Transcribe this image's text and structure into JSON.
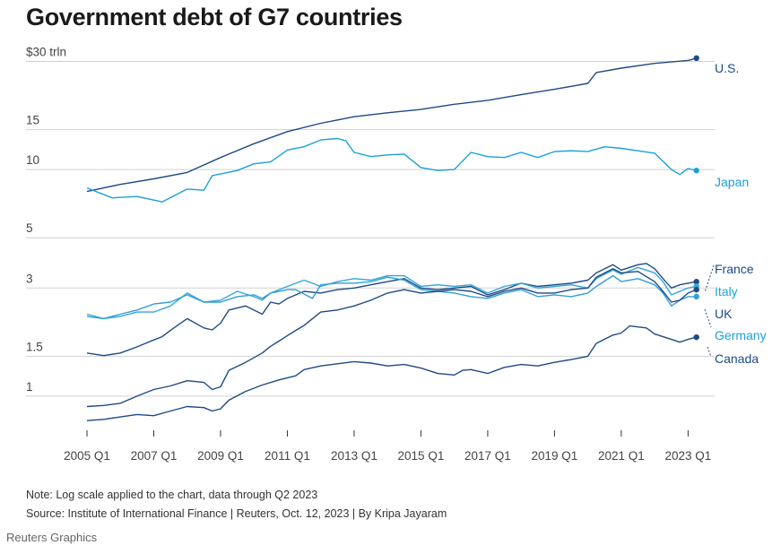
{
  "title": "Government debt of G7 countries",
  "note": "Note: Log scale applied to the chart, data through Q2 2023",
  "source": "Source: Institute of International Finance | Reuters, Oct. 12, 2023 | By Kripa Jayaram",
  "credit": "Reuters Graphics",
  "chart_data": {
    "type": "line",
    "title": "Government debt of G7 countries",
    "yscale": "log",
    "ylim": [
      0.72,
      33
    ],
    "xlim": [
      2005.0,
      2023.5
    ],
    "unit": "trillion US dollars",
    "y_ticks": [
      {
        "value": 30,
        "label": "$30 trln"
      },
      {
        "value": 15,
        "label": "15"
      },
      {
        "value": 10,
        "label": "10"
      },
      {
        "value": 5,
        "label": "5"
      },
      {
        "value": 3,
        "label": "3"
      },
      {
        "value": 1.5,
        "label": "1.5"
      },
      {
        "value": 1,
        "label": "1"
      }
    ],
    "x_ticks": [
      {
        "value": 2005,
        "label": "2005 Q1"
      },
      {
        "value": 2007,
        "label": "2007 Q1"
      },
      {
        "value": 2009,
        "label": "2009 Q1"
      },
      {
        "value": 2011,
        "label": "2011 Q1"
      },
      {
        "value": 2013,
        "label": "2013 Q1"
      },
      {
        "value": 2015,
        "label": "2015 Q1"
      },
      {
        "value": 2017,
        "label": "2017 Q1"
      },
      {
        "value": 2019,
        "label": "2019 Q1"
      },
      {
        "value": 2021,
        "label": "2021 Q1"
      },
      {
        "value": 2023,
        "label": "2023 Q1"
      }
    ],
    "series": [
      {
        "name": "U.S.",
        "color": "#1e4a86",
        "points": [
          [
            2005,
            8.0
          ],
          [
            2006,
            8.6
          ],
          [
            2007,
            9.1
          ],
          [
            2008,
            9.7
          ],
          [
            2009,
            11.3
          ],
          [
            2010,
            13.0
          ],
          [
            2011,
            14.7
          ],
          [
            2012,
            16.0
          ],
          [
            2013,
            17.1
          ],
          [
            2014,
            17.8
          ],
          [
            2015,
            18.4
          ],
          [
            2016,
            19.4
          ],
          [
            2017,
            20.2
          ],
          [
            2018,
            21.4
          ],
          [
            2019,
            22.6
          ],
          [
            2020,
            24.0
          ],
          [
            2020.25,
            26.8
          ],
          [
            2021,
            28.0
          ],
          [
            2022,
            29.4
          ],
          [
            2023,
            30.3
          ],
          [
            2023.25,
            31.0
          ]
        ]
      },
      {
        "name": "Japan",
        "color": "#1aa0dc",
        "points": [
          [
            2005,
            8.3
          ],
          [
            2005.75,
            7.5
          ],
          [
            2006.5,
            7.6
          ],
          [
            2007.25,
            7.2
          ],
          [
            2008,
            8.2
          ],
          [
            2008.5,
            8.1
          ],
          [
            2008.75,
            9.4
          ],
          [
            2009.5,
            9.9
          ],
          [
            2010,
            10.6
          ],
          [
            2010.5,
            10.8
          ],
          [
            2011,
            12.2
          ],
          [
            2011.5,
            12.6
          ],
          [
            2012,
            13.5
          ],
          [
            2012.5,
            13.7
          ],
          [
            2012.75,
            13.4
          ],
          [
            2013,
            11.9
          ],
          [
            2013.5,
            11.4
          ],
          [
            2014,
            11.6
          ],
          [
            2014.5,
            11.7
          ],
          [
            2015,
            10.2
          ],
          [
            2015.5,
            9.9
          ],
          [
            2016,
            10.0
          ],
          [
            2016.5,
            11.9
          ],
          [
            2017,
            11.4
          ],
          [
            2017.5,
            11.3
          ],
          [
            2018,
            11.9
          ],
          [
            2018.5,
            11.3
          ],
          [
            2019,
            12.0
          ],
          [
            2019.5,
            12.1
          ],
          [
            2020,
            12.0
          ],
          [
            2020.5,
            12.6
          ],
          [
            2021,
            12.4
          ],
          [
            2021.5,
            12.1
          ],
          [
            2022,
            11.8
          ],
          [
            2022.5,
            10.0
          ],
          [
            2022.75,
            9.5
          ],
          [
            2023,
            10.1
          ],
          [
            2023.25,
            9.9
          ]
        ]
      },
      {
        "name": "France",
        "color": "#1e4a86",
        "points": [
          [
            2005,
            1.55
          ],
          [
            2005.5,
            1.51
          ],
          [
            2006,
            1.55
          ],
          [
            2006.5,
            1.65
          ],
          [
            2007,
            1.77
          ],
          [
            2007.25,
            1.83
          ],
          [
            2007.5,
            1.95
          ],
          [
            2008,
            2.2
          ],
          [
            2008.5,
            2.0
          ],
          [
            2008.75,
            1.96
          ],
          [
            2009,
            2.1
          ],
          [
            2009.25,
            2.4
          ],
          [
            2009.75,
            2.5
          ],
          [
            2010.25,
            2.3
          ],
          [
            2010.5,
            2.6
          ],
          [
            2010.75,
            2.55
          ],
          [
            2011,
            2.7
          ],
          [
            2011.5,
            2.9
          ],
          [
            2012,
            2.85
          ],
          [
            2012.5,
            2.95
          ],
          [
            2013,
            3.0
          ],
          [
            2013.5,
            3.1
          ],
          [
            2014,
            3.2
          ],
          [
            2014.5,
            3.3
          ],
          [
            2015,
            3.0
          ],
          [
            2015.5,
            2.95
          ],
          [
            2016,
            3.0
          ],
          [
            2016.5,
            3.05
          ],
          [
            2017,
            2.8
          ],
          [
            2017.5,
            2.95
          ],
          [
            2018,
            3.15
          ],
          [
            2018.5,
            3.05
          ],
          [
            2019,
            3.1
          ],
          [
            2019.5,
            3.15
          ],
          [
            2020,
            3.25
          ],
          [
            2020.25,
            3.5
          ],
          [
            2020.75,
            3.8
          ],
          [
            2021,
            3.6
          ],
          [
            2021.5,
            3.8
          ],
          [
            2021.75,
            3.85
          ],
          [
            2022,
            3.65
          ],
          [
            2022.25,
            3.3
          ],
          [
            2022.5,
            3.0
          ],
          [
            2022.75,
            3.1
          ],
          [
            2023,
            3.15
          ],
          [
            2023.25,
            3.2
          ]
        ]
      },
      {
        "name": "Italy",
        "color": "#34a6da",
        "points": [
          [
            2005,
            2.3
          ],
          [
            2005.5,
            2.2
          ],
          [
            2006,
            2.25
          ],
          [
            2006.5,
            2.35
          ],
          [
            2007,
            2.35
          ],
          [
            2007.5,
            2.5
          ],
          [
            2008,
            2.85
          ],
          [
            2008.5,
            2.6
          ],
          [
            2009,
            2.65
          ],
          [
            2009.5,
            2.9
          ],
          [
            2010,
            2.75
          ],
          [
            2010.25,
            2.65
          ],
          [
            2010.5,
            2.85
          ],
          [
            2011,
            3.05
          ],
          [
            2011.5,
            3.25
          ],
          [
            2012,
            3.05
          ],
          [
            2012.5,
            3.2
          ],
          [
            2013,
            3.3
          ],
          [
            2013.5,
            3.25
          ],
          [
            2014,
            3.4
          ],
          [
            2014.5,
            3.4
          ],
          [
            2015,
            3.05
          ],
          [
            2015.5,
            3.1
          ],
          [
            2016,
            3.05
          ],
          [
            2016.5,
            3.1
          ],
          [
            2017,
            2.85
          ],
          [
            2017.5,
            3.05
          ],
          [
            2018,
            3.15
          ],
          [
            2018.5,
            3.0
          ],
          [
            2019,
            3.05
          ],
          [
            2019.5,
            3.1
          ],
          [
            2020,
            3.0
          ],
          [
            2020.25,
            3.3
          ],
          [
            2020.75,
            3.6
          ],
          [
            2021,
            3.45
          ],
          [
            2021.5,
            3.7
          ],
          [
            2022,
            3.5
          ],
          [
            2022.25,
            3.2
          ],
          [
            2022.5,
            2.8
          ],
          [
            2022.75,
            2.9
          ],
          [
            2023,
            3.0
          ],
          [
            2023.25,
            3.05
          ]
        ]
      },
      {
        "name": "UK",
        "color": "#2f9fd8",
        "points": [
          [
            2005,
            2.25
          ],
          [
            2005.5,
            2.2
          ],
          [
            2006,
            2.3
          ],
          [
            2006.5,
            2.4
          ],
          [
            2007,
            2.55
          ],
          [
            2007.5,
            2.6
          ],
          [
            2008,
            2.8
          ],
          [
            2008.5,
            2.6
          ],
          [
            2009,
            2.6
          ],
          [
            2009.5,
            2.75
          ],
          [
            2010,
            2.8
          ],
          [
            2010.25,
            2.7
          ],
          [
            2010.5,
            2.85
          ],
          [
            2011,
            2.95
          ],
          [
            2011.25,
            2.95
          ],
          [
            2011.75,
            2.7
          ],
          [
            2012,
            3.1
          ],
          [
            2012.5,
            3.15
          ],
          [
            2013,
            3.15
          ],
          [
            2013.5,
            3.2
          ],
          [
            2014,
            3.35
          ],
          [
            2014.5,
            3.25
          ],
          [
            2015,
            2.95
          ],
          [
            2015.5,
            2.9
          ],
          [
            2016,
            2.85
          ],
          [
            2016.5,
            2.75
          ],
          [
            2017,
            2.7
          ],
          [
            2017.5,
            2.85
          ],
          [
            2018,
            2.95
          ],
          [
            2018.5,
            2.75
          ],
          [
            2019,
            2.8
          ],
          [
            2019.5,
            2.75
          ],
          [
            2020,
            2.85
          ],
          [
            2020.25,
            3.05
          ],
          [
            2020.75,
            3.4
          ],
          [
            2021,
            3.2
          ],
          [
            2021.5,
            3.3
          ],
          [
            2022,
            3.1
          ],
          [
            2022.25,
            2.85
          ],
          [
            2022.5,
            2.5
          ],
          [
            2022.75,
            2.65
          ],
          [
            2023,
            2.75
          ],
          [
            2023.25,
            2.75
          ]
        ]
      },
      {
        "name": "Germany",
        "color": "#1e4a86",
        "points": [
          [
            2005,
            0.9
          ],
          [
            2005.5,
            0.91
          ],
          [
            2006,
            0.93
          ],
          [
            2006.5,
            1.0
          ],
          [
            2007,
            1.07
          ],
          [
            2007.5,
            1.11
          ],
          [
            2008,
            1.17
          ],
          [
            2008.5,
            1.15
          ],
          [
            2008.75,
            1.07
          ],
          [
            2009,
            1.1
          ],
          [
            2009.25,
            1.3
          ],
          [
            2009.75,
            1.41
          ],
          [
            2010.25,
            1.55
          ],
          [
            2010.5,
            1.66
          ],
          [
            2010.75,
            1.75
          ],
          [
            2011,
            1.85
          ],
          [
            2011.25,
            1.95
          ],
          [
            2011.5,
            2.05
          ],
          [
            2012,
            2.35
          ],
          [
            2012.5,
            2.4
          ],
          [
            2013,
            2.5
          ],
          [
            2013.5,
            2.65
          ],
          [
            2014,
            2.85
          ],
          [
            2014.5,
            2.95
          ],
          [
            2015,
            2.85
          ],
          [
            2015.5,
            2.9
          ],
          [
            2016,
            2.95
          ],
          [
            2016.5,
            2.9
          ],
          [
            2017,
            2.75
          ],
          [
            2017.5,
            2.9
          ],
          [
            2018,
            3.0
          ],
          [
            2018.5,
            2.85
          ],
          [
            2019,
            2.85
          ],
          [
            2019.5,
            2.95
          ],
          [
            2020,
            3.0
          ],
          [
            2020.25,
            3.35
          ],
          [
            2020.75,
            3.65
          ],
          [
            2021,
            3.5
          ],
          [
            2021.5,
            3.55
          ],
          [
            2022,
            3.2
          ],
          [
            2022.25,
            2.9
          ],
          [
            2022.5,
            2.6
          ],
          [
            2022.75,
            2.65
          ],
          [
            2023,
            2.85
          ],
          [
            2023.25,
            2.95
          ]
        ]
      },
      {
        "name": "Canada",
        "color": "#1e4a86",
        "points": [
          [
            2005,
            0.78
          ],
          [
            2005.5,
            0.79
          ],
          [
            2006,
            0.81
          ],
          [
            2006.5,
            0.83
          ],
          [
            2007,
            0.82
          ],
          [
            2007.5,
            0.86
          ],
          [
            2008,
            0.9
          ],
          [
            2008.5,
            0.89
          ],
          [
            2008.75,
            0.86
          ],
          [
            2009,
            0.88
          ],
          [
            2009.25,
            0.96
          ],
          [
            2009.75,
            1.05
          ],
          [
            2010.25,
            1.12
          ],
          [
            2010.75,
            1.18
          ],
          [
            2011.25,
            1.23
          ],
          [
            2011.5,
            1.31
          ],
          [
            2012,
            1.36
          ],
          [
            2012.5,
            1.39
          ],
          [
            2013,
            1.42
          ],
          [
            2013.5,
            1.4
          ],
          [
            2014,
            1.36
          ],
          [
            2014.5,
            1.38
          ],
          [
            2015,
            1.33
          ],
          [
            2015.5,
            1.26
          ],
          [
            2016,
            1.24
          ],
          [
            2016.25,
            1.3
          ],
          [
            2016.5,
            1.31
          ],
          [
            2017,
            1.26
          ],
          [
            2017.5,
            1.34
          ],
          [
            2018,
            1.38
          ],
          [
            2018.5,
            1.36
          ],
          [
            2019,
            1.41
          ],
          [
            2019.5,
            1.45
          ],
          [
            2020,
            1.5
          ],
          [
            2020.25,
            1.71
          ],
          [
            2020.75,
            1.86
          ],
          [
            2021,
            1.9
          ],
          [
            2021.25,
            2.04
          ],
          [
            2021.75,
            2.0
          ],
          [
            2022,
            1.88
          ],
          [
            2022.5,
            1.78
          ],
          [
            2022.75,
            1.73
          ],
          [
            2023,
            1.78
          ],
          [
            2023.25,
            1.82
          ]
        ]
      }
    ],
    "labels": [
      {
        "series": "U.S.",
        "text": "U.S."
      },
      {
        "series": "Japan",
        "text": "Japan"
      },
      {
        "series": "France",
        "text": "France"
      },
      {
        "series": "Italy",
        "text": "Italy"
      },
      {
        "series": "UK",
        "text": "UK"
      },
      {
        "series": "Germany",
        "text": "Germany"
      },
      {
        "series": "Canada",
        "text": "Canada"
      }
    ]
  }
}
